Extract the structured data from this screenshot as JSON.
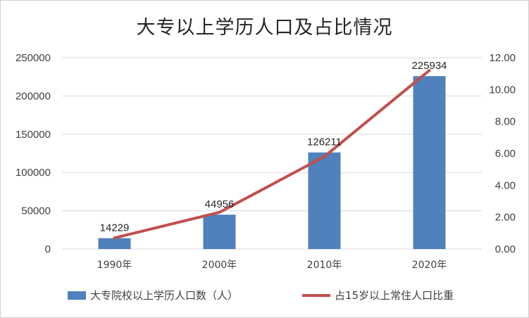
{
  "chart_data": {
    "type": "bar",
    "title": "大专以上学历人口及占比情况",
    "categories": [
      "1990年",
      "2000年",
      "2010年",
      "2020年"
    ],
    "series": [
      {
        "name": "大专院校以上学历人口数（人）",
        "type": "bar",
        "axis": "left",
        "values": [
          14229,
          44956,
          126211,
          225934
        ],
        "color": "#4f81bd"
      },
      {
        "name": "占15岁以上常住人口比重",
        "type": "line",
        "axis": "right",
        "values": [
          0.7,
          2.3,
          5.8,
          11.2
        ],
        "color": "#c0504d"
      }
    ],
    "data_labels": [
      "14229",
      "44956",
      "126211",
      "225934"
    ],
    "ylim": [
      0,
      250000
    ],
    "yticks": [
      "0",
      "50000",
      "100000",
      "150000",
      "200000",
      "250000"
    ],
    "y2lim": [
      0,
      12
    ],
    "y2ticks": [
      "0.00",
      "2.00",
      "4.00",
      "6.00",
      "8.00",
      "10.00",
      "12.00"
    ],
    "grid": true,
    "legend_position": "bottom"
  }
}
